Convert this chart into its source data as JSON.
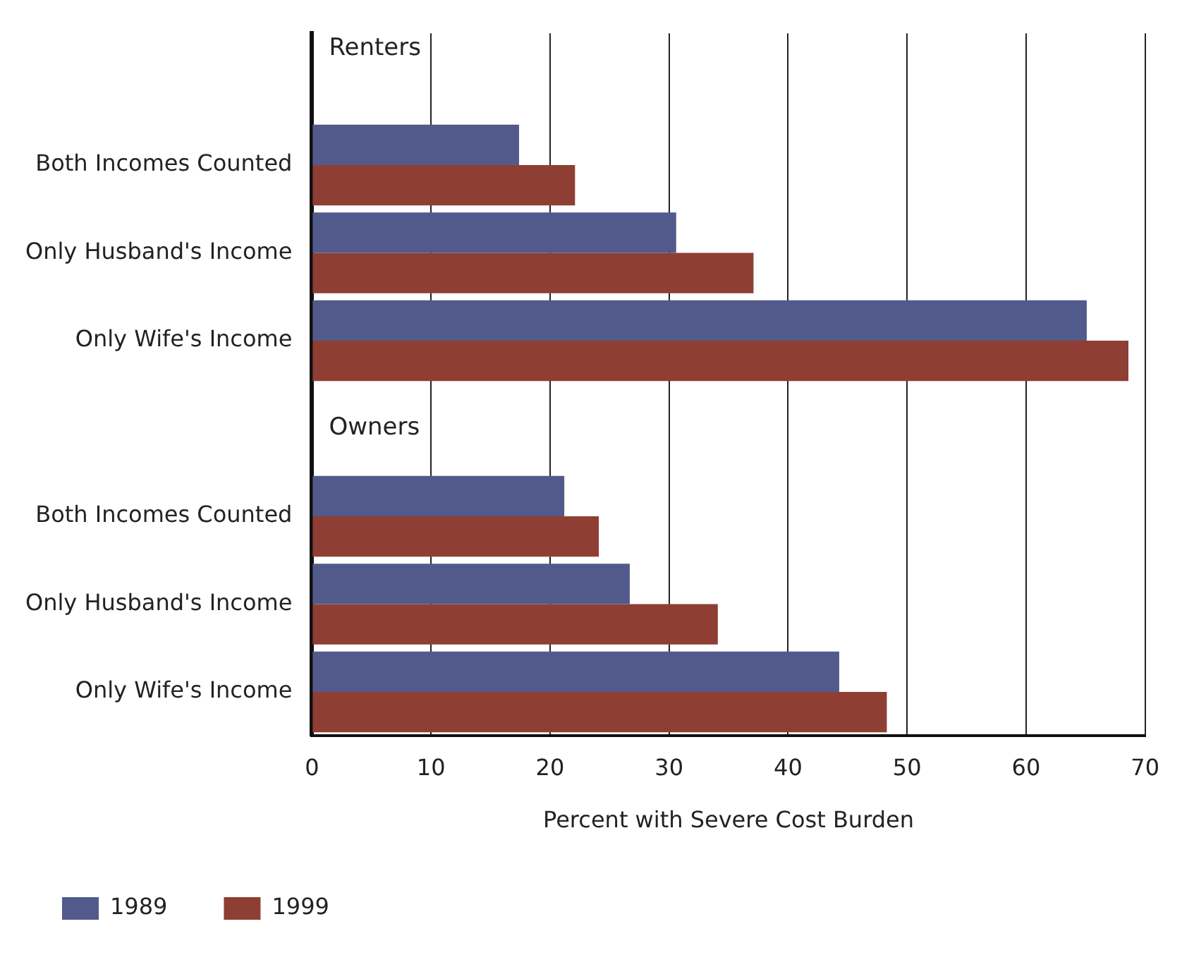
{
  "chart_data": {
    "type": "bar",
    "orientation": "horizontal",
    "categories": [
      null,
      "Both Incomes Counted",
      "Only Husband's Income",
      "Only Wife's Income",
      null,
      "Both Incomes Counted",
      "Only Husband's Income",
      "Only Wife's Income"
    ],
    "series": [
      {
        "name": "1989",
        "color": "#525a8c",
        "values": [
          null,
          17.4,
          30.6,
          65.1,
          null,
          21.2,
          26.7,
          44.3
        ]
      },
      {
        "name": "1999",
        "color": "#8f3e33",
        "values": [
          null,
          22.1,
          37.1,
          68.6,
          null,
          24.1,
          34.1,
          48.3
        ]
      }
    ],
    "xlabel": "Percent with Severe Cost Burden",
    "xlim": [
      0,
      70
    ],
    "xticks": [
      0,
      10,
      20,
      30,
      40,
      50,
      60,
      70
    ],
    "grid": "x",
    "legend": "bottom left",
    "annotations": [
      "Renters",
      "Owners"
    ]
  }
}
